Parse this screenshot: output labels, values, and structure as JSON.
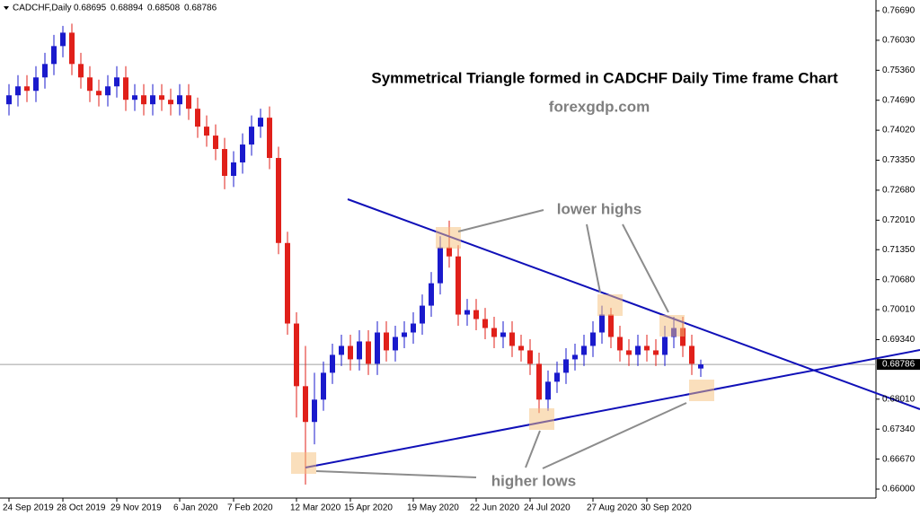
{
  "chart_data": {
    "type": "candlestick",
    "header": "CADCHF,Daily",
    "last_ohlc": [
      0.68695,
      0.68894,
      0.68508,
      0.68786
    ],
    "title": "Symmetrical Triangle formed in CADCHF Daily Time frame Chart",
    "subtitle": "forexgdp.com",
    "annotations": [
      "lower highs",
      "higher lows"
    ],
    "current_price": 0.68786,
    "up_color": "#1a1acc",
    "down_color": "#e0201a",
    "open": [
      0.746,
      0.748,
      0.75,
      0.749,
      0.752,
      0.755,
      0.759,
      0.762,
      0.755,
      0.752,
      0.749,
      0.748,
      0.75,
      0.752,
      0.747,
      0.748,
      0.746,
      0.748,
      0.747,
      0.746,
      0.748,
      0.745,
      0.741,
      0.739,
      0.736,
      0.73,
      0.733,
      0.737,
      0.741,
      0.743,
      0.734,
      0.715,
      0.697,
      0.683,
      0.675,
      0.68,
      0.686,
      0.69,
      0.692,
      0.689,
      0.693,
      0.688,
      0.695,
      0.691,
      0.694,
      0.695,
      0.697,
      0.701,
      0.706,
      0.714,
      0.712,
      0.699,
      0.7,
      0.698,
      0.696,
      0.694,
      0.695,
      0.692,
      0.691,
      0.688,
      0.68,
      0.684,
      0.686,
      0.689,
      0.69,
      0.692,
      0.695,
      0.699,
      0.694,
      0.691,
      0.69,
      0.692,
      0.691,
      0.69,
      0.694,
      0.696,
      0.692,
      0.68695
    ],
    "high": [
      0.7505,
      0.7525,
      0.7525,
      0.7545,
      0.7575,
      0.7615,
      0.7635,
      0.764,
      0.7575,
      0.7545,
      0.7515,
      0.7525,
      0.7545,
      0.7545,
      0.7505,
      0.7505,
      0.7505,
      0.7505,
      0.7495,
      0.7505,
      0.7505,
      0.7475,
      0.7435,
      0.7415,
      0.7385,
      0.7355,
      0.7395,
      0.7435,
      0.745,
      0.7455,
      0.7365,
      0.7175,
      0.6995,
      0.692,
      0.686,
      0.6885,
      0.6925,
      0.6945,
      0.6945,
      0.6955,
      0.6955,
      0.6975,
      0.6975,
      0.6965,
      0.6975,
      0.6995,
      0.7035,
      0.7085,
      0.7165,
      0.72,
      0.7145,
      0.7025,
      0.7025,
      0.7005,
      0.6985,
      0.6975,
      0.6975,
      0.6945,
      0.6935,
      0.6905,
      0.6865,
      0.6885,
      0.6915,
      0.6925,
      0.6945,
      0.6975,
      0.701,
      0.7005,
      0.6965,
      0.6935,
      0.6945,
      0.6945,
      0.6935,
      0.6965,
      0.6985,
      0.6985,
      0.6945,
      0.68894
    ],
    "low": [
      0.7435,
      0.7455,
      0.7465,
      0.7465,
      0.7495,
      0.7525,
      0.7565,
      0.7525,
      0.7495,
      0.7465,
      0.7455,
      0.7455,
      0.7475,
      0.7445,
      0.7445,
      0.7435,
      0.7435,
      0.7445,
      0.7435,
      0.7435,
      0.7425,
      0.7385,
      0.7365,
      0.7335,
      0.727,
      0.7275,
      0.7305,
      0.7345,
      0.7385,
      0.7315,
      0.7125,
      0.6945,
      0.676,
      0.661,
      0.67,
      0.6775,
      0.6835,
      0.6875,
      0.6865,
      0.6865,
      0.6855,
      0.6855,
      0.6885,
      0.6885,
      0.6915,
      0.6925,
      0.6945,
      0.6985,
      0.7035,
      0.7095,
      0.6965,
      0.6965,
      0.6955,
      0.6935,
      0.6915,
      0.6915,
      0.6895,
      0.6885,
      0.6855,
      0.677,
      0.6775,
      0.6815,
      0.6835,
      0.6865,
      0.6875,
      0.6895,
      0.6925,
      0.6915,
      0.6885,
      0.6875,
      0.6875,
      0.6885,
      0.6875,
      0.6875,
      0.6915,
      0.6895,
      0.6855,
      0.68508
    ],
    "close": [
      0.748,
      0.75,
      0.749,
      0.752,
      0.755,
      0.759,
      0.762,
      0.755,
      0.752,
      0.749,
      0.748,
      0.75,
      0.752,
      0.747,
      0.748,
      0.746,
      0.748,
      0.747,
      0.746,
      0.748,
      0.745,
      0.741,
      0.739,
      0.736,
      0.73,
      0.733,
      0.737,
      0.741,
      0.743,
      0.734,
      0.715,
      0.697,
      0.683,
      0.675,
      0.68,
      0.686,
      0.69,
      0.692,
      0.689,
      0.693,
      0.688,
      0.695,
      0.691,
      0.694,
      0.695,
      0.697,
      0.701,
      0.706,
      0.714,
      0.712,
      0.699,
      0.7,
      0.698,
      0.696,
      0.694,
      0.695,
      0.692,
      0.691,
      0.688,
      0.68,
      0.684,
      0.686,
      0.689,
      0.69,
      0.692,
      0.695,
      0.699,
      0.694,
      0.691,
      0.69,
      0.692,
      0.691,
      0.69,
      0.694,
      0.696,
      0.692,
      0.688,
      0.68786
    ],
    "xlim": [
      -1,
      96.5
    ],
    "xticks": [
      {
        "value": 0,
        "label": "24 Sep 2019"
      },
      {
        "value": 6,
        "label": "28 Oct 2019"
      },
      {
        "value": 12,
        "label": "29 Nov 2019"
      },
      {
        "value": 19,
        "label": "6 Jan 2020"
      },
      {
        "value": 25,
        "label": "7 Feb 2020"
      },
      {
        "value": 32,
        "label": "12 Mar 2020"
      },
      {
        "value": 38,
        "label": "15 Apr 2020"
      },
      {
        "value": 45,
        "label": "19 May 2020"
      },
      {
        "value": 52,
        "label": "22 Jun 2020"
      },
      {
        "value": 58,
        "label": "24 Jul 2020"
      },
      {
        "value": 65,
        "label": "27 Aug 2020"
      },
      {
        "value": 71,
        "label": "30 Sep 2020"
      }
    ],
    "ylim": [
      0.658,
      0.7693
    ],
    "yticks": [
      {
        "value": 0.7669,
        "label": "0.76690"
      },
      {
        "value": 0.7603,
        "label": "0.76030"
      },
      {
        "value": 0.7536,
        "label": "0.75360"
      },
      {
        "value": 0.7469,
        "label": "0.74690"
      },
      {
        "value": 0.7402,
        "label": "0.74020"
      },
      {
        "value": 0.7335,
        "label": "0.73350"
      },
      {
        "value": 0.7268,
        "label": "0.72680"
      },
      {
        "value": 0.7201,
        "label": "0.72010"
      },
      {
        "value": 0.7135,
        "label": "0.71350"
      },
      {
        "value": 0.7068,
        "label": "0.70680"
      },
      {
        "value": 0.7001,
        "label": "0.70010"
      },
      {
        "value": 0.6934,
        "label": "0.69340"
      },
      {
        "value": 0.6801,
        "label": "0.68010"
      },
      {
        "value": 0.6734,
        "label": "0.67340"
      },
      {
        "value": 0.6667,
        "label": "0.66670"
      },
      {
        "value": 0.66,
        "label": "0.66000"
      }
    ]
  }
}
